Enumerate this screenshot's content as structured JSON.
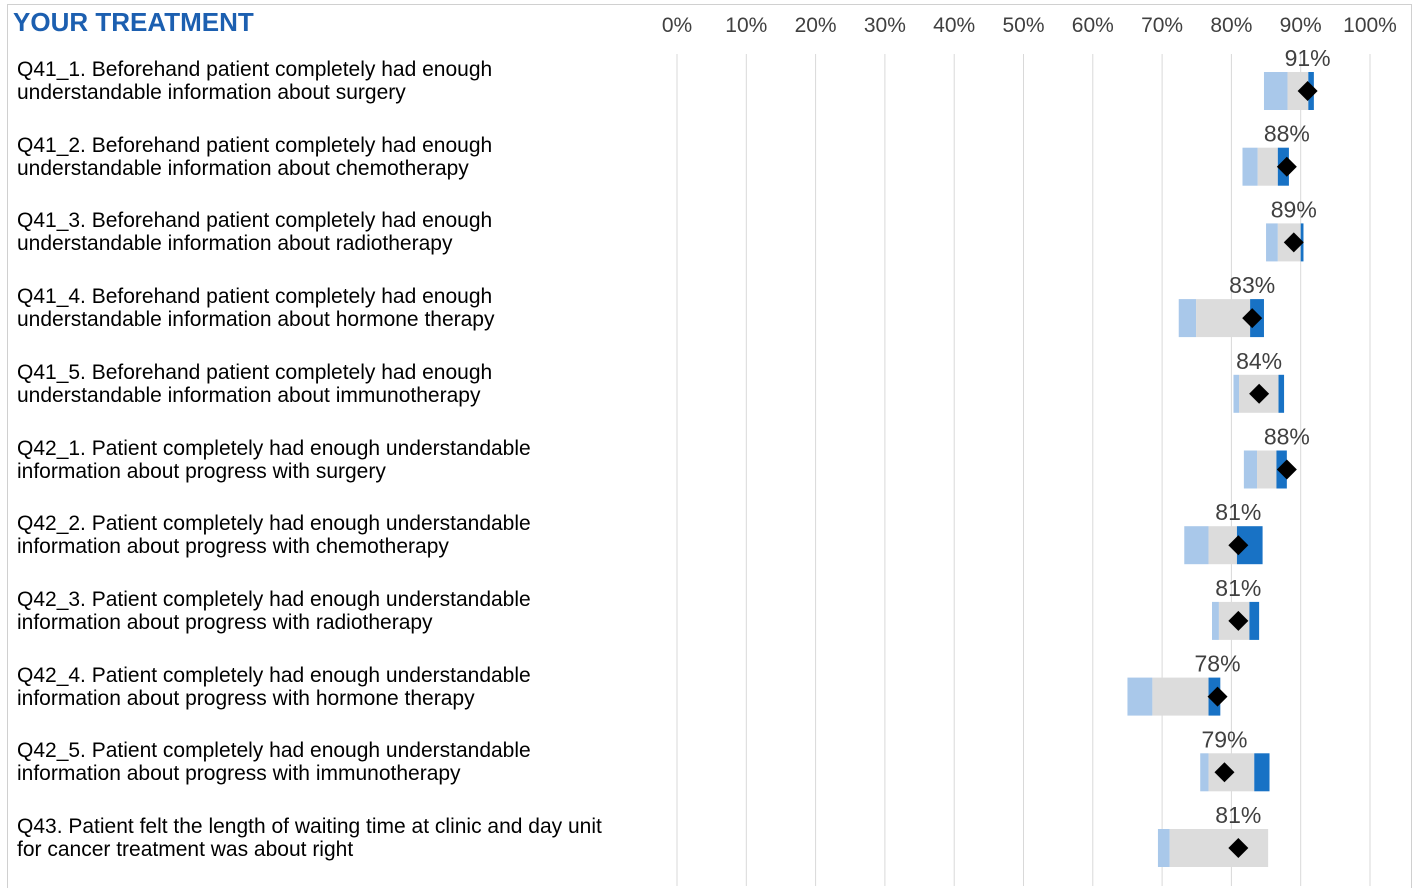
{
  "section_title": "YOUR TREATMENT",
  "colors": {
    "title": "#1c5fb0",
    "range_light": "#a9c8ea",
    "range_mid": "#dcdcdc",
    "range_dark": "#1872c5",
    "marker": "#000000",
    "gridline": "#d9d9d9"
  },
  "chart_data": {
    "type": "bar",
    "orientation": "horizontal",
    "x_axis": {
      "min": 0,
      "max": 100,
      "ticks": [
        "0%",
        "10%",
        "20%",
        "30%",
        "40%",
        "50%",
        "60%",
        "70%",
        "80%",
        "90%",
        "100%"
      ]
    },
    "grid": true,
    "rows": [
      {
        "label": "Q41_1. Beforehand patient completely had enough\nunderstandable information about surgery",
        "value": 91,
        "value_label": "91%",
        "range": [
          84.7,
          88.1,
          91.1,
          91.9
        ]
      },
      {
        "label": "Q41_2. Beforehand patient completely had enough\nunderstandable information about chemotherapy",
        "value": 88,
        "value_label": "88%",
        "range": [
          81.6,
          83.8,
          86.7,
          88.3
        ]
      },
      {
        "label": "Q41_3. Beforehand patient completely had enough\nunderstandable information about radiotherapy",
        "value": 89,
        "value_label": "89%",
        "range": [
          85.0,
          86.7,
          90.0,
          90.4
        ]
      },
      {
        "label": "Q41_4. Beforehand patient completely had enough\nunderstandable information about hormone therapy",
        "value": 83,
        "value_label": "83%",
        "range": [
          72.4,
          74.9,
          82.7,
          84.7
        ]
      },
      {
        "label": "Q41_5. Beforehand patient completely had enough\nunderstandable information about immunotherapy",
        "value": 84,
        "value_label": "84%",
        "range": [
          80.3,
          81.1,
          86.8,
          87.6
        ]
      },
      {
        "label": "Q42_1. Patient completely had enough understandable\ninformation about progress with surgery",
        "value": 88,
        "value_label": "88%",
        "range": [
          81.8,
          83.7,
          86.5,
          88.0
        ]
      },
      {
        "label": "Q42_2. Patient completely had enough understandable\ninformation about progress with chemotherapy",
        "value": 81,
        "value_label": "81%",
        "range": [
          73.2,
          76.7,
          80.8,
          84.5
        ]
      },
      {
        "label": "Q42_3. Patient completely had enough understandable\ninformation about progress with radiotherapy",
        "value": 81,
        "value_label": "81%",
        "range": [
          77.2,
          78.2,
          82.6,
          84.0
        ]
      },
      {
        "label": "Q42_4. Patient completely had enough understandable\ninformation about progress with hormone therapy",
        "value": 78,
        "value_label": "78%",
        "range": [
          65.0,
          68.6,
          76.7,
          78.4
        ]
      },
      {
        "label": "Q42_5. Patient completely had enough understandable\ninformation about progress with immunotherapy",
        "value": 79,
        "value_label": "79%",
        "range": [
          75.5,
          76.7,
          83.3,
          85.5
        ]
      },
      {
        "label": "Q43. Patient felt the length of waiting time at clinic and day unit\nfor cancer treatment was about right",
        "value": 81,
        "value_label": "81%",
        "range": [
          69.4,
          71.1,
          85.3,
          85.3
        ]
      }
    ]
  }
}
